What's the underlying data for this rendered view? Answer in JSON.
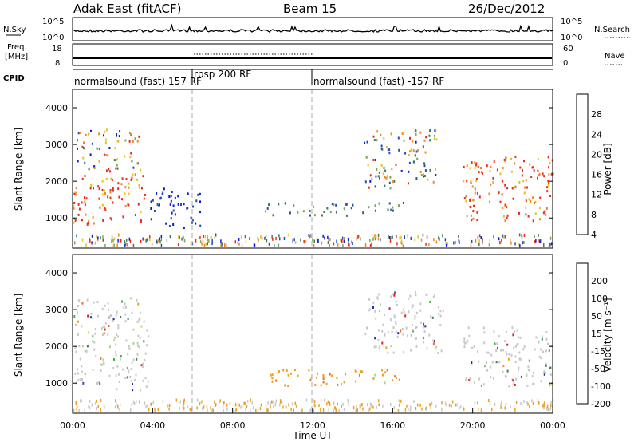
{
  "header": {
    "title_left": "Adak East (fitACF)",
    "title_center": "Beam 15",
    "title_right": "26/Dec/2012"
  },
  "top_panels": {
    "nsky_label": "N.Sky",
    "nsky_ticks": [
      "10^5",
      "10^0"
    ],
    "nsearch_label": "N.Search",
    "nsearch_ticks_right": [
      "10^5",
      "10^0"
    ],
    "freq_label_1": "Freq.",
    "freq_label_2": "[MHz]",
    "freq_ticks": [
      "18",
      "8"
    ],
    "nave_label": "Nave",
    "nave_ticks_right": [
      "60",
      "0"
    ],
    "cpid_label": "CPID",
    "cpid_segments": [
      {
        "label": "normalsound (fast) 157 RF",
        "start_hour": 0.0
      },
      {
        "label": "rbsp 200 RF",
        "start_hour": 6.0
      },
      {
        "label": "normalsound (fast) -157 RF",
        "start_hour": 12.0
      }
    ]
  },
  "chart_data": [
    {
      "type": "heatmap",
      "panel": "power",
      "ylabel": "Slant Range [km]",
      "xlabel": "Time UT",
      "xlim": [
        0,
        24
      ],
      "ylim": [
        180,
        4500
      ],
      "yticks": [
        "1000",
        "2000",
        "3000",
        "4000"
      ],
      "colorbar": {
        "label": "Power [dB]",
        "ticks": [
          "4",
          "8",
          "12",
          "16",
          "20",
          "24",
          "28"
        ],
        "colors": [
          "#0b1fd6",
          "#2a4fa6",
          "#3b7b5e",
          "#7aa55a",
          "#e6c21d",
          "#f08a1e",
          "#ef2b1b"
        ]
      },
      "regions": [
        {
          "t0": 0.0,
          "t1": 3.6,
          "r0": 800,
          "r1": 2300,
          "level": "high"
        },
        {
          "t0": 0.2,
          "t1": 3.4,
          "r0": 2300,
          "r1": 3400,
          "level": "mixed"
        },
        {
          "t0": 3.8,
          "t1": 6.4,
          "r0": 700,
          "r1": 1800,
          "level": "low"
        },
        {
          "t0": 9.6,
          "t1": 16.5,
          "r0": 1050,
          "r1": 1400,
          "level": "mid"
        },
        {
          "t0": 14.5,
          "t1": 18.2,
          "r0": 1800,
          "r1": 3400,
          "level": "mixed"
        },
        {
          "t0": 19.5,
          "t1": 24.0,
          "r0": 900,
          "r1": 2700,
          "level": "high"
        }
      ]
    },
    {
      "type": "heatmap",
      "panel": "velocity",
      "ylabel": "Slant Range [km]",
      "xlabel": "Time UT",
      "xlim": [
        0,
        24
      ],
      "ylim": [
        180,
        4500
      ],
      "yticks": [
        "1000",
        "2000",
        "3000",
        "4000"
      ],
      "xticks": [
        "00:00",
        "04:00",
        "08:00",
        "12:00",
        "16:00",
        "20:00",
        "00:00"
      ],
      "colorbar": {
        "label": "Velocity [m s⁻¹]",
        "ticks": [
          "200",
          "100",
          "50",
          "15",
          "-15",
          "-50",
          "-100",
          "-200"
        ],
        "colors": [
          "#1b2fb4",
          "#3d7f5a",
          "#40b33c",
          "#9fe07a",
          "#c8c8c8",
          "#f0a01e",
          "#f07020",
          "#e82020"
        ]
      },
      "regions": [
        {
          "t0": 0.0,
          "t1": 3.8,
          "r0": 800,
          "r1": 3300,
          "level": "grey"
        },
        {
          "t0": 9.8,
          "t1": 16.4,
          "r0": 900,
          "r1": 1350,
          "level": "orange"
        },
        {
          "t0": 14.6,
          "t1": 18.5,
          "r0": 1800,
          "r1": 3500,
          "level": "grey"
        },
        {
          "t0": 19.5,
          "t1": 24.0,
          "r0": 900,
          "r1": 2500,
          "level": "grey"
        }
      ]
    }
  ]
}
